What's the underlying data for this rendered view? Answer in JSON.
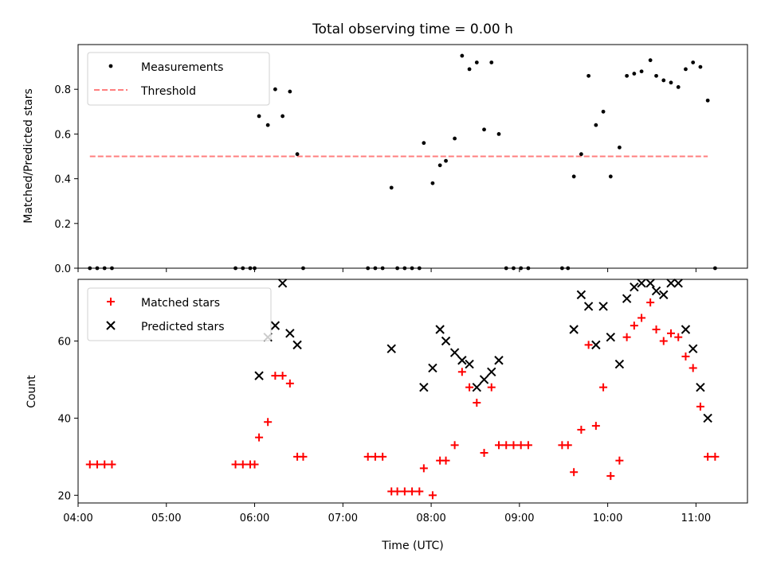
{
  "chart_data": [
    {
      "type": "scatter",
      "title": "Total observing time = 0.00 h",
      "xlabel": "",
      "ylabel": "Matched/Predicted stars",
      "xlim": [
        "04:00",
        "11:35"
      ],
      "ylim": [
        0,
        1.0
      ],
      "yticks": [
        "0.0",
        "0.2",
        "0.4",
        "0.6",
        "0.8"
      ],
      "legend_position": "top-left",
      "series": [
        {
          "name": "Measurements",
          "color": "#000000",
          "marker": "dot",
          "points": [
            [
              "04:08",
              0.0
            ],
            [
              "04:13",
              0.0
            ],
            [
              "04:18",
              0.0
            ],
            [
              "04:23",
              0.0
            ],
            [
              "05:47",
              0.0
            ],
            [
              "05:52",
              0.0
            ],
            [
              "05:57",
              0.0
            ],
            [
              "06:00",
              0.0
            ],
            [
              "06:03",
              0.68
            ],
            [
              "06:09",
              0.64
            ],
            [
              "06:14",
              0.8
            ],
            [
              "06:19",
              0.68
            ],
            [
              "06:24",
              0.79
            ],
            [
              "06:29",
              0.51
            ],
            [
              "06:33",
              0.0
            ],
            [
              "07:17",
              0.0
            ],
            [
              "07:22",
              0.0
            ],
            [
              "07:27",
              0.0
            ],
            [
              "07:33",
              0.36
            ],
            [
              "07:37",
              0.0
            ],
            [
              "07:42",
              0.0
            ],
            [
              "07:47",
              0.0
            ],
            [
              "07:52",
              0.0
            ],
            [
              "07:55",
              0.56
            ],
            [
              "08:01",
              0.38
            ],
            [
              "08:06",
              0.46
            ],
            [
              "08:10",
              0.48
            ],
            [
              "08:16",
              0.58
            ],
            [
              "08:21",
              0.95
            ],
            [
              "08:26",
              0.89
            ],
            [
              "08:31",
              0.92
            ],
            [
              "08:36",
              0.62
            ],
            [
              "08:41",
              0.92
            ],
            [
              "08:46",
              0.6
            ],
            [
              "08:51",
              0.0
            ],
            [
              "08:56",
              0.0
            ],
            [
              "09:01",
              0.0
            ],
            [
              "09:06",
              0.0
            ],
            [
              "09:29",
              0.0
            ],
            [
              "09:33",
              0.0
            ],
            [
              "09:37",
              0.41
            ],
            [
              "09:42",
              0.51
            ],
            [
              "09:47",
              0.86
            ],
            [
              "09:52",
              0.64
            ],
            [
              "09:57",
              0.7
            ],
            [
              "10:02",
              0.41
            ],
            [
              "10:08",
              0.54
            ],
            [
              "10:13",
              0.86
            ],
            [
              "10:18",
              0.87
            ],
            [
              "10:23",
              0.88
            ],
            [
              "10:29",
              0.93
            ],
            [
              "10:33",
              0.86
            ],
            [
              "10:38",
              0.84
            ],
            [
              "10:43",
              0.83
            ],
            [
              "10:48",
              0.81
            ],
            [
              "10:53",
              0.89
            ],
            [
              "10:58",
              0.92
            ],
            [
              "11:03",
              0.9
            ],
            [
              "11:08",
              0.75
            ],
            [
              "11:13",
              0.0
            ]
          ]
        },
        {
          "name": "Threshold",
          "color": "#ff7f7f",
          "line_style": "dashed",
          "points": [
            [
              "04:08",
              0.5
            ],
            [
              "11:08",
              0.5
            ]
          ]
        }
      ]
    },
    {
      "type": "scatter",
      "title": "",
      "xlabel": "Time (UTC)",
      "ylabel": "Count",
      "xlim": [
        "04:00",
        "11:35"
      ],
      "ylim": [
        18,
        76
      ],
      "yticks": [
        "20",
        "40",
        "60"
      ],
      "xticks": [
        "04:00",
        "05:00",
        "06:00",
        "07:00",
        "08:00",
        "09:00",
        "10:00",
        "11:00"
      ],
      "legend_position": "top-left",
      "series": [
        {
          "name": "Matched stars",
          "color": "#ff0000",
          "marker": "plus",
          "points": [
            [
              "04:08",
              28
            ],
            [
              "04:13",
              28
            ],
            [
              "04:18",
              28
            ],
            [
              "04:23",
              28
            ],
            [
              "05:47",
              28
            ],
            [
              "05:52",
              28
            ],
            [
              "05:57",
              28
            ],
            [
              "06:00",
              28
            ],
            [
              "06:03",
              35
            ],
            [
              "06:09",
              39
            ],
            [
              "06:14",
              51
            ],
            [
              "06:19",
              51
            ],
            [
              "06:24",
              49
            ],
            [
              "06:29",
              30
            ],
            [
              "06:33",
              30
            ],
            [
              "07:17",
              30
            ],
            [
              "07:22",
              30
            ],
            [
              "07:27",
              30
            ],
            [
              "07:33",
              21
            ],
            [
              "07:37",
              21
            ],
            [
              "07:42",
              21
            ],
            [
              "07:47",
              21
            ],
            [
              "07:52",
              21
            ],
            [
              "07:55",
              27
            ],
            [
              "08:01",
              20
            ],
            [
              "08:06",
              29
            ],
            [
              "08:10",
              29
            ],
            [
              "08:16",
              33
            ],
            [
              "08:21",
              52
            ],
            [
              "08:26",
              48
            ],
            [
              "08:31",
              44
            ],
            [
              "08:36",
              31
            ],
            [
              "08:41",
              48
            ],
            [
              "08:46",
              33
            ],
            [
              "08:51",
              33
            ],
            [
              "08:56",
              33
            ],
            [
              "09:01",
              33
            ],
            [
              "09:06",
              33
            ],
            [
              "09:29",
              33
            ],
            [
              "09:33",
              33
            ],
            [
              "09:37",
              26
            ],
            [
              "09:42",
              37
            ],
            [
              "09:47",
              59
            ],
            [
              "09:52",
              38
            ],
            [
              "09:57",
              48
            ],
            [
              "10:02",
              25
            ],
            [
              "10:08",
              29
            ],
            [
              "10:13",
              61
            ],
            [
              "10:18",
              64
            ],
            [
              "10:23",
              66
            ],
            [
              "10:29",
              70
            ],
            [
              "10:33",
              63
            ],
            [
              "10:38",
              60
            ],
            [
              "10:43",
              62
            ],
            [
              "10:48",
              61
            ],
            [
              "10:53",
              56
            ],
            [
              "10:58",
              53
            ],
            [
              "11:03",
              43
            ],
            [
              "11:08",
              30
            ],
            [
              "11:13",
              30
            ]
          ]
        },
        {
          "name": "Predicted stars",
          "color": "#000000",
          "marker": "x",
          "points": [
            [
              "06:03",
              51
            ],
            [
              "06:09",
              61
            ],
            [
              "06:14",
              64
            ],
            [
              "06:19",
              75
            ],
            [
              "06:24",
              62
            ],
            [
              "06:29",
              59
            ],
            [
              "07:33",
              58
            ],
            [
              "07:55",
              48
            ],
            [
              "08:01",
              53
            ],
            [
              "08:06",
              63
            ],
            [
              "08:10",
              60
            ],
            [
              "08:16",
              57
            ],
            [
              "08:21",
              55
            ],
            [
              "08:26",
              54
            ],
            [
              "08:31",
              48
            ],
            [
              "08:36",
              50
            ],
            [
              "08:41",
              52
            ],
            [
              "08:46",
              55
            ],
            [
              "09:37",
              63
            ],
            [
              "09:42",
              72
            ],
            [
              "09:47",
              69
            ],
            [
              "09:52",
              59
            ],
            [
              "09:57",
              69
            ],
            [
              "10:02",
              61
            ],
            [
              "10:08",
              54
            ],
            [
              "10:13",
              71
            ],
            [
              "10:18",
              74
            ],
            [
              "10:23",
              75
            ],
            [
              "10:29",
              75
            ],
            [
              "10:33",
              73
            ],
            [
              "10:38",
              72
            ],
            [
              "10:43",
              75
            ],
            [
              "10:48",
              75
            ],
            [
              "10:53",
              63
            ],
            [
              "10:58",
              58
            ],
            [
              "11:03",
              48
            ],
            [
              "11:08",
              40
            ]
          ]
        }
      ]
    }
  ]
}
